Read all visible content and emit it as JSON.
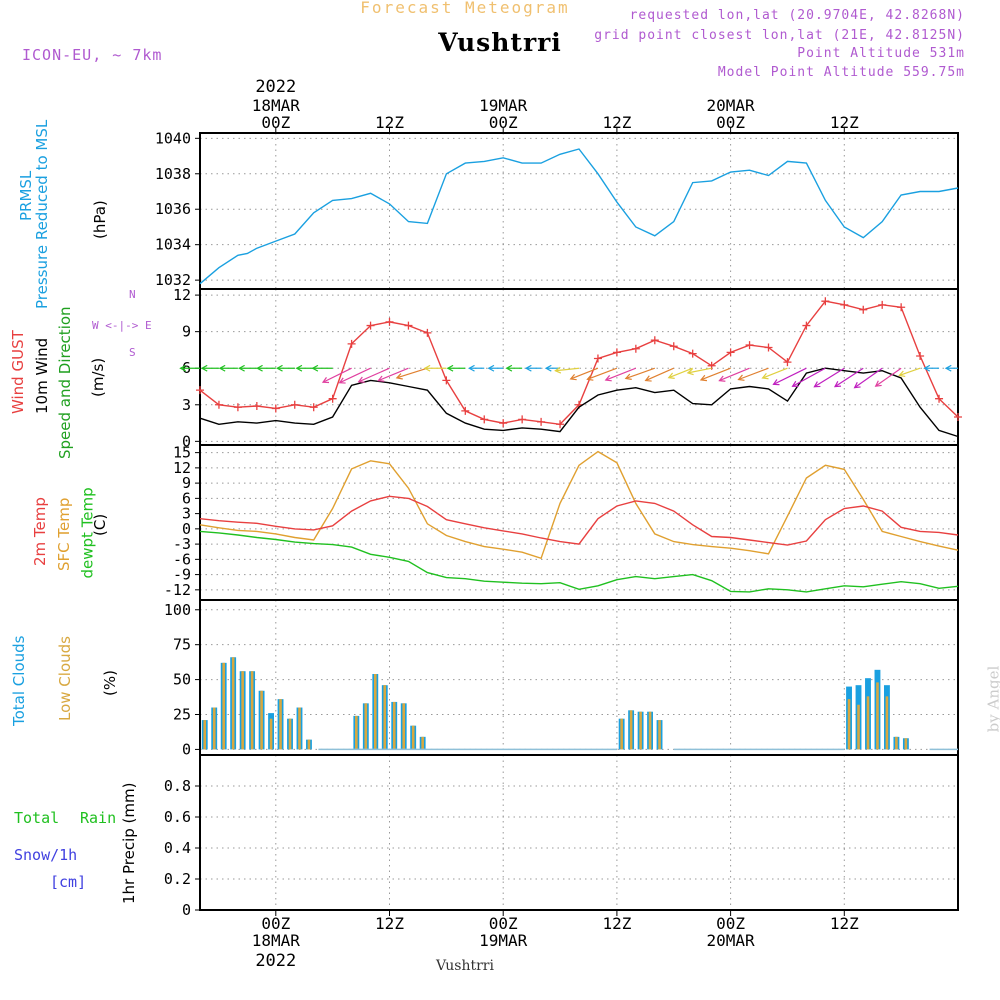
{
  "header": {
    "subtitle": "Forecast Meteogram",
    "title": "Vushtrri",
    "model": "ICON-EU, ~ 7km",
    "requested": "requested lon,lat (20.9704E, 42.8268N)",
    "grid_point": "grid point closest lon,lat (21E, 42.8125N)",
    "point_alt": "Point Altitude 531m",
    "model_alt": "Model Point Altitude 559.75m"
  },
  "time_axis": {
    "top_year": "2022",
    "top_labels": [
      {
        "t": 0,
        "lines": [
          "18MAR",
          "00Z"
        ]
      },
      {
        "t": 12,
        "lines": [
          "12Z"
        ]
      },
      {
        "t": 24,
        "lines": [
          "19MAR",
          "00Z"
        ]
      },
      {
        "t": 36,
        "lines": [
          "12Z"
        ]
      },
      {
        "t": 48,
        "lines": [
          "20MAR",
          "00Z"
        ]
      },
      {
        "t": 60,
        "lines": [
          "12Z"
        ]
      }
    ],
    "bottom_labels": [
      {
        "t": 0,
        "lines": [
          "00Z",
          "18MAR"
        ]
      },
      {
        "t": 12,
        "lines": [
          "12Z"
        ]
      },
      {
        "t": 24,
        "lines": [
          "00Z",
          "19MAR"
        ]
      },
      {
        "t": 36,
        "lines": [
          "12Z"
        ]
      },
      {
        "t": 48,
        "lines": [
          "00Z",
          "20MAR"
        ]
      },
      {
        "t": 60,
        "lines": [
          "12Z"
        ]
      }
    ],
    "bottom_year": "2022"
  },
  "labels": {
    "prmsl": "PRMSL",
    "prmsl_long": "Pressure Reduced to MSL",
    "prmsl_unit": "(hPa)",
    "wind_gust": "Wind GUST",
    "wind_10m": "10m Wind",
    "wind_speed_dir": "Speed and Direction",
    "wind_unit": "(m/s)",
    "compass_n": "N",
    "compass_mid": "W <-|-> E",
    "compass_s": "S",
    "temp_2m": "2m Temp",
    "temp_sfc": "SFC Temp",
    "temp_dewpt": "dewpt Temp",
    "temp_unit": "(C)",
    "total_clouds": "Total Clouds",
    "low_clouds": "Low Clouds",
    "clouds_unit": "(%)",
    "rain_total": "Total",
    "rain_rain": "Rain",
    "snow": "Snow/1h",
    "snow_unit": "[cm]",
    "precip_axis": "1hr Precip (mm)",
    "footer": "Vushtrri",
    "credit": "by Angel"
  },
  "colors": {
    "pressure": "#1aa0e0",
    "gust": "#e84040",
    "wind": "#000000",
    "temp2m": "#e84040",
    "sfc": "#e0a030",
    "dewpt": "#20c020",
    "total_clouds": "#1aa0e0",
    "low_clouds": "#d8a840",
    "purple": "#b05ad0",
    "snow": "#4040e0"
  },
  "chart_data": [
    {
      "type": "line",
      "title": "PRMSL Pressure Reduced to MSL",
      "ylabel": "(hPa)",
      "x_unit": "hours from 18MAR 00Z",
      "xlim": [
        -8,
        72
      ],
      "ylim": [
        1031.5,
        1040.3
      ],
      "yticks": [
        1032,
        1034,
        1036,
        1038,
        1040
      ],
      "series": [
        {
          "name": "PRMSL",
          "x": [
            -8,
            -6,
            -4,
            -3,
            -2,
            0,
            2,
            4,
            6,
            8,
            10,
            12,
            14,
            16,
            18,
            20,
            22,
            24,
            26,
            28,
            30,
            32,
            34,
            36,
            38,
            40,
            42,
            44,
            46,
            48,
            50,
            52,
            54,
            56,
            58,
            60,
            62,
            64,
            66,
            68,
            70,
            72
          ],
          "values": [
            1031.8,
            1032.7,
            1033.4,
            1033.5,
            1033.8,
            1034.2,
            1034.6,
            1035.8,
            1036.5,
            1036.6,
            1036.9,
            1036.3,
            1035.3,
            1035.2,
            1038.0,
            1038.6,
            1038.7,
            1038.9,
            1038.6,
            1038.6,
            1039.1,
            1039.4,
            1038.0,
            1036.4,
            1035.0,
            1034.5,
            1035.3,
            1037.5,
            1037.6,
            1038.1,
            1038.2,
            1037.9,
            1038.7,
            1038.6,
            1036.5,
            1035.0,
            1034.4,
            1035.3,
            1036.8,
            1037.0,
            1037.0,
            1037.2
          ]
        }
      ]
    },
    {
      "type": "line",
      "title": "Wind GUST / 10m Wind Speed and Direction",
      "ylabel": "(m/s)",
      "x_unit": "hours from 18MAR 00Z",
      "xlim": [
        -8,
        72
      ],
      "ylim": [
        -0.3,
        12.5
      ],
      "yticks": [
        0,
        3,
        6,
        9,
        12
      ],
      "series": [
        {
          "name": "Wind GUST",
          "x": [
            -8,
            -6,
            -4,
            -2,
            0,
            2,
            4,
            6,
            8,
            10,
            12,
            14,
            16,
            18,
            20,
            22,
            24,
            26,
            28,
            30,
            32,
            34,
            36,
            38,
            40,
            42,
            44,
            46,
            48,
            50,
            52,
            54,
            56,
            58,
            60,
            62,
            64,
            66,
            68,
            70,
            72
          ],
          "values": [
            4.2,
            3.0,
            2.8,
            2.9,
            2.7,
            3.0,
            2.8,
            3.5,
            8.0,
            9.5,
            9.8,
            9.5,
            8.9,
            5.0,
            2.5,
            1.8,
            1.5,
            1.8,
            1.6,
            1.4,
            3.0,
            6.8,
            7.3,
            7.6,
            8.3,
            7.8,
            7.2,
            6.2,
            7.3,
            7.9,
            7.7,
            6.5,
            9.5,
            11.5,
            11.2,
            10.8,
            11.2,
            11.0,
            7.0,
            3.5,
            2.0
          ]
        },
        {
          "name": "10m Wind",
          "x": [
            -8,
            -6,
            -4,
            -2,
            0,
            2,
            4,
            6,
            8,
            10,
            12,
            14,
            16,
            18,
            20,
            22,
            24,
            26,
            28,
            30,
            32,
            34,
            36,
            38,
            40,
            42,
            44,
            46,
            48,
            50,
            52,
            54,
            56,
            58,
            60,
            62,
            64,
            66,
            68,
            70,
            72
          ],
          "values": [
            1.9,
            1.4,
            1.6,
            1.5,
            1.7,
            1.5,
            1.4,
            2.0,
            4.6,
            5.0,
            4.8,
            4.5,
            4.2,
            2.3,
            1.5,
            1.0,
            0.9,
            1.1,
            1.0,
            0.8,
            2.8,
            3.8,
            4.2,
            4.4,
            4.0,
            4.2,
            3.1,
            3.0,
            4.3,
            4.5,
            4.3,
            3.3,
            5.6,
            6.0,
            5.8,
            5.6,
            5.8,
            5.2,
            2.8,
            0.9,
            0.4
          ]
        }
      ],
      "wind_vectors": {
        "x_unit": "hours",
        "y_level": 6.0,
        "x": [
          -8,
          -6,
          -4,
          -2,
          0,
          2,
          4,
          6,
          8,
          10,
          12,
          14,
          16,
          18,
          20,
          22,
          24,
          26,
          28,
          30,
          32,
          34,
          36,
          38,
          40,
          42,
          44,
          46,
          48,
          50,
          52,
          54,
          56,
          58,
          60,
          62,
          64,
          66,
          68,
          70,
          72
        ],
        "speed": [
          1.9,
          1.4,
          1.6,
          1.5,
          1.7,
          1.5,
          1.4,
          2.0,
          4.6,
          5.0,
          4.8,
          4.5,
          4.2,
          2.3,
          1.5,
          1.0,
          0.9,
          1.1,
          1.0,
          0.8,
          2.8,
          3.8,
          4.2,
          4.4,
          4.0,
          4.2,
          3.1,
          3.0,
          4.3,
          4.5,
          4.3,
          3.3,
          5.6,
          6.0,
          5.8,
          5.6,
          5.8,
          5.2,
          2.8,
          0.9,
          0.4
        ],
        "direction_deg": [
          90,
          90,
          90,
          90,
          90,
          90,
          90,
          90,
          60,
          62,
          65,
          68,
          80,
          90,
          90,
          90,
          90,
          90,
          90,
          90,
          80,
          70,
          72,
          70,
          75,
          65,
          70,
          72,
          70,
          68,
          72,
          70,
          60,
          55,
          50,
          48,
          45,
          45,
          60,
          90,
          90
        ]
      }
    },
    {
      "type": "line",
      "title": "2m Temp / SFC Temp / dewpt Temp",
      "ylabel": "(C)",
      "x_unit": "hours from 18MAR 00Z",
      "xlim": [
        -8,
        72
      ],
      "ylim": [
        -14,
        16.5
      ],
      "yticks": [
        -12,
        -9,
        -6,
        -3,
        0,
        3,
        6,
        9,
        12,
        15
      ],
      "series": [
        {
          "name": "2m Temp",
          "x": [
            -8,
            -6,
            -4,
            -2,
            0,
            2,
            4,
            6,
            8,
            10,
            12,
            14,
            16,
            18,
            20,
            22,
            24,
            26,
            28,
            30,
            32,
            34,
            36,
            38,
            40,
            42,
            44,
            46,
            48,
            50,
            52,
            54,
            56,
            58,
            60,
            62,
            64,
            66,
            68,
            70,
            72
          ],
          "values": [
            2.0,
            1.6,
            1.3,
            1.1,
            0.5,
            0.0,
            -0.2,
            0.6,
            3.5,
            5.5,
            6.4,
            6.0,
            4.4,
            1.8,
            1.0,
            0.2,
            -0.4,
            -1.0,
            -1.8,
            -2.5,
            -3.0,
            2.0,
            4.5,
            5.5,
            5.0,
            3.5,
            0.8,
            -1.5,
            -1.7,
            -2.2,
            -2.7,
            -3.2,
            -2.4,
            1.8,
            4.0,
            4.5,
            3.5,
            0.3,
            -0.5,
            -0.7,
            -1.2
          ]
        },
        {
          "name": "SFC Temp",
          "x": [
            -8,
            -6,
            -4,
            -2,
            0,
            2,
            4,
            6,
            8,
            10,
            12,
            14,
            16,
            18,
            20,
            22,
            24,
            26,
            28,
            30,
            32,
            34,
            36,
            38,
            40,
            42,
            44,
            46,
            48,
            50,
            52,
            54,
            56,
            58,
            60,
            62,
            64,
            66,
            68,
            70,
            72
          ],
          "values": [
            0.8,
            0.2,
            -0.3,
            -0.5,
            -1.0,
            -1.7,
            -2.2,
            4.0,
            11.8,
            13.4,
            12.8,
            8.0,
            1.0,
            -1.3,
            -2.5,
            -3.5,
            -4.0,
            -4.6,
            -5.8,
            5.0,
            12.5,
            15.2,
            13.0,
            5.0,
            -1.0,
            -2.5,
            -3.1,
            -3.5,
            -3.8,
            -4.3,
            -4.9,
            2.5,
            10.0,
            12.5,
            11.7,
            5.8,
            -0.5,
            -1.5,
            -2.5,
            -3.4,
            -4.2
          ]
        },
        {
          "name": "dewpt Temp",
          "x": [
            -8,
            -6,
            -4,
            -2,
            0,
            2,
            4,
            6,
            8,
            10,
            12,
            14,
            16,
            18,
            20,
            22,
            24,
            26,
            28,
            30,
            32,
            34,
            36,
            38,
            40,
            42,
            44,
            46,
            48,
            50,
            52,
            54,
            56,
            58,
            60,
            62,
            64,
            66,
            68,
            70,
            72
          ],
          "values": [
            -0.5,
            -0.8,
            -1.2,
            -1.7,
            -2.1,
            -2.6,
            -2.9,
            -3.1,
            -3.6,
            -5.0,
            -5.6,
            -6.4,
            -8.6,
            -9.6,
            -9.8,
            -10.3,
            -10.5,
            -10.7,
            -10.8,
            -10.6,
            -11.9,
            -11.2,
            -10.0,
            -9.4,
            -9.8,
            -9.4,
            -9.0,
            -10.2,
            -12.3,
            -12.4,
            -11.8,
            -12.0,
            -12.4,
            -11.8,
            -11.2,
            -11.4,
            -10.9,
            -10.4,
            -10.8,
            -11.7,
            -11.3
          ]
        }
      ]
    },
    {
      "type": "bar",
      "title": "Total Clouds / Low Clouds",
      "ylabel": "(%)",
      "x_unit": "hours from 18MAR 00Z",
      "xlim": [
        -8,
        72
      ],
      "ylim": [
        -4,
        107
      ],
      "yticks": [
        0,
        25,
        50,
        75,
        100
      ],
      "x": [
        -8,
        -7,
        -6,
        -5,
        -4,
        -3,
        -2,
        -1,
        0,
        1,
        2,
        3,
        4,
        5,
        6,
        7,
        8,
        9,
        10,
        11,
        12,
        13,
        14,
        15,
        16,
        36,
        37,
        38,
        39,
        40,
        41,
        60,
        61,
        62,
        63,
        64,
        65,
        66,
        67,
        68
      ],
      "series": [
        {
          "name": "Total Clouds",
          "values": [
            21,
            30,
            62,
            66,
            56,
            56,
            42,
            26,
            36,
            22,
            30,
            7,
            0,
            0,
            0,
            0,
            24,
            33,
            54,
            46,
            34,
            33,
            17,
            9,
            0,
            22,
            28,
            27,
            27,
            21,
            0,
            45,
            46,
            51,
            57,
            46,
            9,
            8,
            0,
            0
          ]
        },
        {
          "name": "Low Clouds",
          "values": [
            21,
            30,
            62,
            66,
            56,
            56,
            42,
            22,
            36,
            22,
            30,
            7,
            0,
            0,
            0,
            0,
            24,
            33,
            54,
            46,
            34,
            33,
            17,
            9,
            0,
            22,
            28,
            27,
            27,
            21,
            0,
            36,
            32,
            38,
            48,
            38,
            9,
            8,
            0,
            0
          ]
        }
      ]
    },
    {
      "type": "bar",
      "title": "1hr Precip",
      "ylabel": "1hr Precip (mm)",
      "x_unit": "hours from 18MAR 00Z",
      "xlim": [
        -8,
        72
      ],
      "ylim": [
        0,
        1.0
      ],
      "yticks": [
        0,
        0.2,
        0.4,
        0.6,
        0.8
      ],
      "series": [
        {
          "name": "Total Rain",
          "values": []
        },
        {
          "name": "Snow/1h",
          "values": []
        }
      ]
    }
  ]
}
